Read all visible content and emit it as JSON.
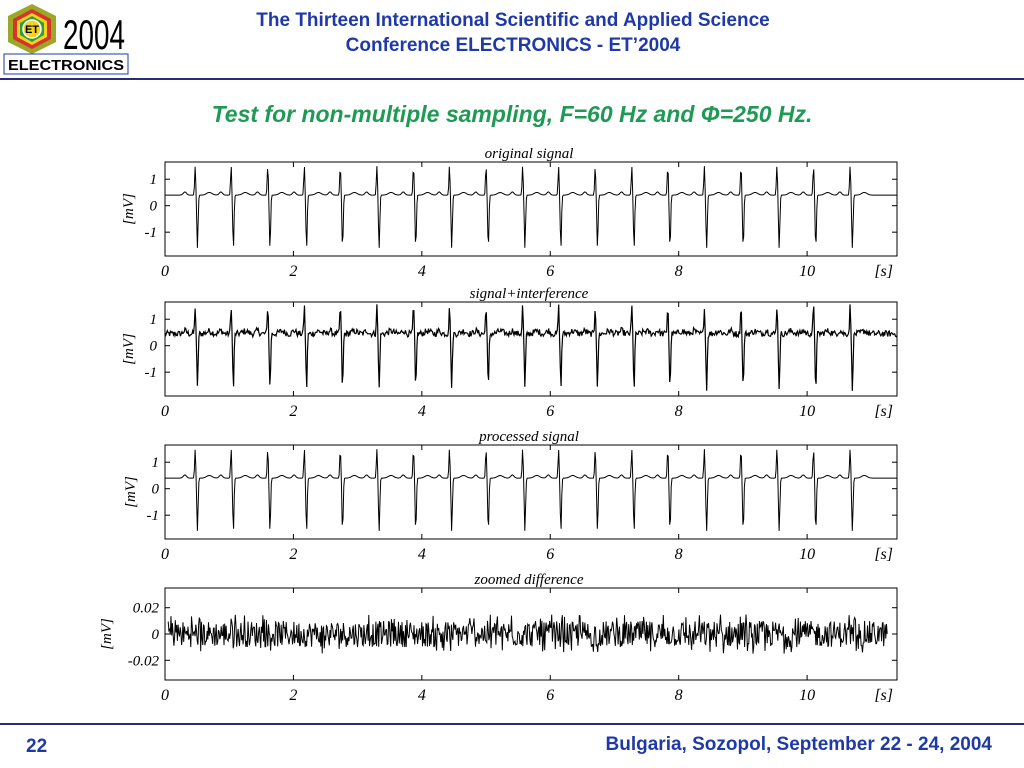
{
  "header": {
    "logo": {
      "badge_text": "ET",
      "year": "2004",
      "banner_text": "ELECTRONICS"
    },
    "title_line1": "The Thirteen International Scientific and Applied Science",
    "title_line2": "Conference ELECTRONICS - ET’2004"
  },
  "slide_title": "Test for non-multiple sampling, F=60 Hz and Φ=250 Hz.",
  "colors": {
    "header_text": "#1f3aa8",
    "slide_title": "#1f9a55",
    "rule": "#2a2a78",
    "logo_red": "#d8322c",
    "logo_green": "#2e9d3e",
    "logo_yellow": "#f6d21a",
    "logo_olive": "#9aa825"
  },
  "chart_data": [
    {
      "type": "line",
      "title": "original signal",
      "ylabel": "[mV]",
      "xlabel": "[s]",
      "xlim": [
        0,
        11.4
      ],
      "ylim": [
        -1.9,
        1.65
      ],
      "xticks": [
        "0",
        "2",
        "4",
        "6",
        "8",
        "10"
      ],
      "yticks": [
        "1",
        "0",
        "-1"
      ],
      "grid": false,
      "series": [
        {
          "description_beats": [
            0.47,
            1.03,
            1.6,
            2.17,
            2.73,
            3.3,
            3.87,
            4.43,
            5.0,
            5.57,
            6.13,
            6.7,
            7.27,
            7.83,
            8.4,
            8.97,
            9.53,
            10.1,
            10.67
          ],
          "baseline": 0.4,
          "r_peak": 1.5,
          "s_trough": -1.6,
          "noise": 0.0
        }
      ]
    },
    {
      "type": "line",
      "title": "signal+interference",
      "ylabel": "[mV]",
      "xlabel": "[s]",
      "xlim": [
        0,
        11.4
      ],
      "ylim": [
        -1.9,
        1.65
      ],
      "xticks": [
        "0",
        "2",
        "4",
        "6",
        "8",
        "10"
      ],
      "yticks": [
        "1",
        "0",
        "-1"
      ],
      "grid": false,
      "series": [
        {
          "description_beats": [
            0.47,
            1.03,
            1.6,
            2.17,
            2.73,
            3.3,
            3.87,
            4.43,
            5.0,
            5.57,
            6.13,
            6.7,
            7.27,
            7.83,
            8.4,
            8.97,
            9.53,
            10.1,
            10.67
          ],
          "baseline": 0.45,
          "r_peak": 1.5,
          "s_trough": -1.6,
          "noise": 0.12
        }
      ]
    },
    {
      "type": "line",
      "title": "processed signal",
      "ylabel": "[mV]",
      "xlabel": "[s]",
      "xlim": [
        0,
        11.4
      ],
      "ylim": [
        -1.9,
        1.65
      ],
      "xticks": [
        "0",
        "2",
        "4",
        "6",
        "8",
        "10"
      ],
      "yticks": [
        "1",
        "0",
        "-1"
      ],
      "grid": false,
      "series": [
        {
          "description_beats": [
            0.47,
            1.03,
            1.6,
            2.17,
            2.73,
            3.3,
            3.87,
            4.43,
            5.0,
            5.57,
            6.13,
            6.7,
            7.27,
            7.83,
            8.4,
            8.97,
            9.53,
            10.1,
            10.67
          ],
          "baseline": 0.4,
          "r_peak": 1.5,
          "s_trough": -1.6,
          "noise": 0.0
        }
      ]
    },
    {
      "type": "line",
      "title": "zoomed difference",
      "ylabel": "[mV]",
      "xlabel": "[s]",
      "xlim": [
        0,
        11.4
      ],
      "ylim": [
        -0.035,
        0.035
      ],
      "xticks": [
        "0",
        "2",
        "4",
        "6",
        "8",
        "10"
      ],
      "yticks": [
        "0.02",
        "0",
        "-0.02"
      ],
      "grid": false,
      "series": [
        {
          "x_range": [
            0.0,
            11.25
          ],
          "center": 0.0,
          "amplitude": 0.01,
          "spikes_to": 0.015
        }
      ]
    }
  ],
  "footer": {
    "page_number": "22",
    "location": "Bulgaria, Sozopol, September 22 - 24, 2004"
  }
}
